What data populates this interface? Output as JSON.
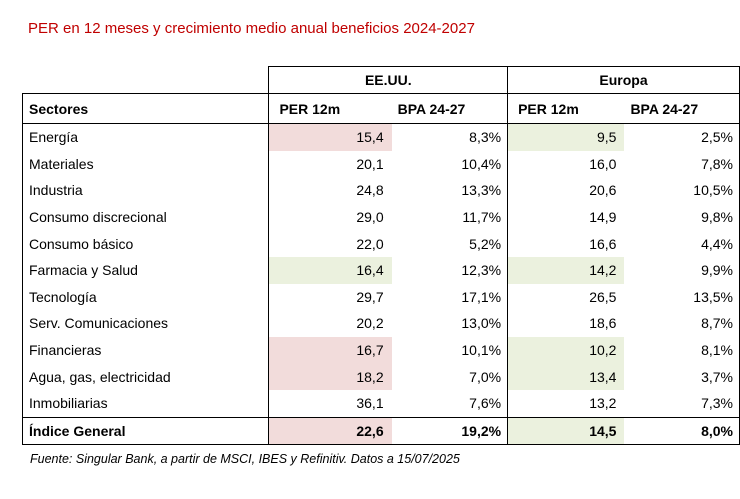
{
  "title": "PER en 12 meses y crecimiento medio anual beneficios 2024-2027",
  "groups": {
    "usa": "EE.UU.",
    "europe": "Europa"
  },
  "header": {
    "sector": "Sectores",
    "usa_per": "PER 12m",
    "usa_bpa": "BPA 24-27",
    "eu_per": "PER 12m",
    "eu_bpa": "BPA 24-27"
  },
  "rows": [
    {
      "sector": "Energía",
      "usa_per": "15,4",
      "usa_bpa": "8,3%",
      "eu_per": "9,5",
      "eu_bpa": "2,5%",
      "usa_per_hl": "pink",
      "eu_per_hl": "green"
    },
    {
      "sector": "Materiales",
      "usa_per": "20,1",
      "usa_bpa": "10,4%",
      "eu_per": "16,0",
      "eu_bpa": "7,8%",
      "usa_per_hl": "",
      "eu_per_hl": ""
    },
    {
      "sector": "Industria",
      "usa_per": "24,8",
      "usa_bpa": "13,3%",
      "eu_per": "20,6",
      "eu_bpa": "10,5%",
      "usa_per_hl": "",
      "eu_per_hl": ""
    },
    {
      "sector": "Consumo discrecional",
      "usa_per": "29,0",
      "usa_bpa": "11,7%",
      "eu_per": "14,9",
      "eu_bpa": "9,8%",
      "usa_per_hl": "",
      "eu_per_hl": ""
    },
    {
      "sector": "Consumo básico",
      "usa_per": "22,0",
      "usa_bpa": "5,2%",
      "eu_per": "16,6",
      "eu_bpa": "4,4%",
      "usa_per_hl": "",
      "eu_per_hl": ""
    },
    {
      "sector": "Farmacia y Salud",
      "usa_per": "16,4",
      "usa_bpa": "12,3%",
      "eu_per": "14,2",
      "eu_bpa": "9,9%",
      "usa_per_hl": "green",
      "eu_per_hl": "green"
    },
    {
      "sector": "Tecnología",
      "usa_per": "29,7",
      "usa_bpa": "17,1%",
      "eu_per": "26,5",
      "eu_bpa": "13,5%",
      "usa_per_hl": "",
      "eu_per_hl": ""
    },
    {
      "sector": "Serv. Comunicaciones",
      "usa_per": "20,2",
      "usa_bpa": "13,0%",
      "eu_per": "18,6",
      "eu_bpa": "8,7%",
      "usa_per_hl": "",
      "eu_per_hl": ""
    },
    {
      "sector": "Financieras",
      "usa_per": "16,7",
      "usa_bpa": "10,1%",
      "eu_per": "10,2",
      "eu_bpa": "8,1%",
      "usa_per_hl": "pink",
      "eu_per_hl": "green"
    },
    {
      "sector": "Agua, gas, electricidad",
      "usa_per": "18,2",
      "usa_bpa": "7,0%",
      "eu_per": "13,4",
      "eu_bpa": "3,7%",
      "usa_per_hl": "pink",
      "eu_per_hl": "green"
    },
    {
      "sector": "Inmobiliarias",
      "usa_per": "36,1",
      "usa_bpa": "7,6%",
      "eu_per": "13,2",
      "eu_bpa": "7,3%",
      "usa_per_hl": "",
      "eu_per_hl": ""
    }
  ],
  "total": {
    "sector": "Índice General",
    "usa_per": "22,6",
    "usa_bpa": "19,2%",
    "eu_per": "14,5",
    "eu_bpa": "8,0%",
    "usa_per_hl": "pink",
    "eu_per_hl": "green"
  },
  "footnote": "Fuente: Singular Bank, a partir de MSCI, IBES y Refinitiv. Datos a 15/07/2025",
  "colors": {
    "title": "#c00000",
    "pink": "#f2dcdb",
    "green": "#ebf1de"
  }
}
